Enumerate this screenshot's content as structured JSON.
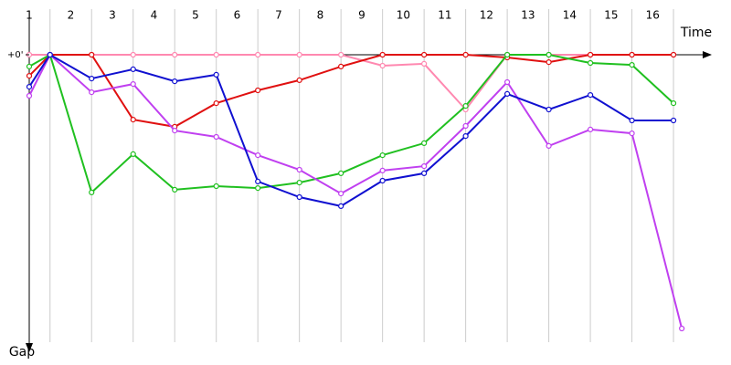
{
  "chart_data": {
    "type": "line",
    "x_label": "Time",
    "y_label": "Gap",
    "xlim": [
      0.5,
      16.9
    ],
    "ylim": [
      0,
      105
    ],
    "xticks": [
      {
        "value": 1,
        "label": "1"
      },
      {
        "value": 2,
        "label": "2"
      },
      {
        "value": 3,
        "label": "3"
      },
      {
        "value": 4,
        "label": "4"
      },
      {
        "value": 5,
        "label": "5"
      },
      {
        "value": 6,
        "label": "6"
      },
      {
        "value": 7,
        "label": "7"
      },
      {
        "value": 8,
        "label": "8"
      },
      {
        "value": 9,
        "label": "9"
      },
      {
        "value": 10,
        "label": "10"
      },
      {
        "value": 11,
        "label": "11"
      },
      {
        "value": 12,
        "label": "12"
      },
      {
        "value": 13,
        "label": "13"
      },
      {
        "value": 14,
        "label": "14"
      },
      {
        "value": 15,
        "label": "15"
      },
      {
        "value": 16,
        "label": "16"
      }
    ],
    "yticks": [
      {
        "value": 0,
        "label": "+0'"
      }
    ],
    "grid": true,
    "series": [
      {
        "color": "#ff88b0",
        "x": [
          0.5,
          1,
          2,
          3,
          4,
          5,
          6,
          7,
          8,
          9,
          10,
          11,
          12,
          13,
          14,
          15,
          16
        ],
        "values": [
          0,
          0,
          0,
          0,
          0,
          0,
          0,
          0,
          0,
          4,
          3.3,
          20,
          0,
          0,
          0,
          0,
          0
        ]
      },
      {
        "color": "#e01010",
        "x": [
          0.5,
          1,
          2,
          3,
          4,
          5,
          6,
          7,
          8,
          9,
          10,
          11,
          12,
          13,
          14,
          15,
          16
        ],
        "values": [
          7.7,
          0,
          0,
          23.7,
          26.3,
          17.7,
          13,
          9.3,
          4.3,
          0,
          0,
          0,
          1,
          2.7,
          0,
          0,
          0
        ]
      },
      {
        "color": "#20c020",
        "x": [
          0.5,
          1,
          2,
          3,
          4,
          5,
          6,
          7,
          8,
          9,
          10,
          11,
          12,
          13,
          14,
          15,
          16
        ],
        "values": [
          4.3,
          0,
          50.3,
          36.3,
          49.3,
          48,
          48.7,
          46.7,
          43.3,
          36.7,
          32.3,
          18.7,
          0,
          0,
          3,
          3.7,
          17.7
        ]
      },
      {
        "color": "#c040f0",
        "x": [
          0.5,
          1,
          2,
          3,
          4,
          5,
          6,
          7,
          8,
          9,
          10,
          11,
          12,
          13,
          14,
          15,
          16.2
        ],
        "values": [
          15,
          0,
          13.7,
          10.7,
          27.7,
          30,
          36.7,
          42,
          50.7,
          42.3,
          40.7,
          26,
          10,
          33.3,
          27.3,
          28.7,
          100
        ]
      },
      {
        "color": "#1010d0",
        "x": [
          0.5,
          1,
          2,
          3,
          4,
          5,
          6,
          7,
          8,
          9,
          10,
          11,
          12,
          13,
          14,
          15,
          16
        ],
        "values": [
          11.7,
          0,
          8.7,
          5.3,
          9.7,
          7.3,
          46.3,
          52,
          55.3,
          46,
          43.3,
          29.7,
          14.3,
          20,
          14.7,
          24,
          24
        ]
      }
    ]
  }
}
